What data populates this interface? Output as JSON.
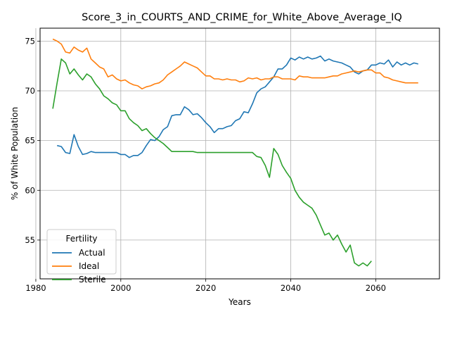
{
  "chart_data": {
    "type": "line",
    "title": "Score_3_in_COURTS_AND_CRIME_for_White_Above_Average_IQ",
    "xlabel": "Years",
    "ylabel": "% of White Population",
    "xlim": [
      1981,
      2075
    ],
    "ylim": [
      51.1,
      76.3
    ],
    "xticks": [
      1980,
      2000,
      2020,
      2040,
      2060
    ],
    "yticks": [
      55,
      60,
      65,
      70,
      75
    ],
    "grid": true,
    "legend": {
      "title": "Fertility",
      "location": "lower-left"
    },
    "series": [
      {
        "name": "Actual",
        "color": "#1f77b4",
        "x": [
          1985,
          1986,
          1987,
          1988,
          1989,
          1990,
          1991,
          1992,
          1993,
          1994,
          1995,
          1996,
          1997,
          1998,
          1999,
          2000,
          2001,
          2002,
          2003,
          2004,
          2005,
          2006,
          2007,
          2008,
          2009,
          2010,
          2011,
          2012,
          2013,
          2014,
          2015,
          2016,
          2017,
          2018,
          2019,
          2020,
          2021,
          2022,
          2023,
          2024,
          2025,
          2026,
          2027,
          2028,
          2029,
          2030,
          2031,
          2032,
          2033,
          2034,
          2035,
          2036,
          2037,
          2038,
          2039,
          2040,
          2041,
          2042,
          2043,
          2044,
          2045,
          2046,
          2047,
          2048,
          2049,
          2050,
          2051,
          2052,
          2053,
          2054,
          2055,
          2056,
          2057,
          2058,
          2059,
          2060,
          2061,
          2062,
          2063,
          2064,
          2065,
          2066,
          2067,
          2068,
          2069,
          2070
        ],
        "values": [
          64.5,
          64.4,
          63.8,
          63.7,
          65.6,
          64.4,
          63.6,
          63.7,
          63.9,
          63.8,
          63.8,
          63.8,
          63.8,
          63.8,
          63.8,
          63.6,
          63.6,
          63.3,
          63.5,
          63.5,
          63.8,
          64.5,
          65.1,
          65.0,
          65.4,
          66.1,
          66.4,
          67.5,
          67.6,
          67.6,
          68.4,
          68.1,
          67.6,
          67.7,
          67.3,
          66.8,
          66.4,
          65.8,
          66.2,
          66.2,
          66.4,
          66.5,
          67.0,
          67.2,
          67.9,
          67.8,
          68.7,
          69.8,
          70.2,
          70.4,
          70.9,
          71.4,
          72.2,
          72.2,
          72.6,
          73.3,
          73.1,
          73.4,
          73.2,
          73.4,
          73.2,
          73.3,
          73.5,
          73.0,
          73.2,
          73.0,
          72.9,
          72.8,
          72.6,
          72.4,
          71.9,
          71.7,
          72.0,
          72.1,
          72.6,
          72.6,
          72.8,
          72.7,
          73.1,
          72.4,
          72.9,
          72.6,
          72.8,
          72.6,
          72.8,
          72.7
        ]
      },
      {
        "name": "Ideal",
        "color": "#ff7f0e",
        "x": [
          1984,
          1985,
          1986,
          1987,
          1988,
          1989,
          1990,
          1991,
          1992,
          1993,
          1994,
          1995,
          1996,
          1997,
          1998,
          1999,
          2000,
          2001,
          2002,
          2003,
          2004,
          2005,
          2006,
          2007,
          2008,
          2009,
          2010,
          2011,
          2012,
          2013,
          2014,
          2015,
          2016,
          2017,
          2018,
          2019,
          2020,
          2021,
          2022,
          2023,
          2024,
          2025,
          2026,
          2027,
          2028,
          2029,
          2030,
          2031,
          2032,
          2033,
          2034,
          2035,
          2036,
          2037,
          2038,
          2039,
          2040,
          2041,
          2042,
          2043,
          2044,
          2045,
          2046,
          2047,
          2048,
          2049,
          2050,
          2051,
          2052,
          2053,
          2054,
          2055,
          2056,
          2057,
          2058,
          2059,
          2060,
          2061,
          2062,
          2063,
          2064,
          2065,
          2066,
          2067,
          2068,
          2069,
          2070
        ],
        "values": [
          75.2,
          75.0,
          74.7,
          73.9,
          73.8,
          74.4,
          74.1,
          73.9,
          74.3,
          73.2,
          72.8,
          72.4,
          72.2,
          71.4,
          71.6,
          71.2,
          71.0,
          71.1,
          70.8,
          70.6,
          70.5,
          70.2,
          70.4,
          70.5,
          70.7,
          70.8,
          71.1,
          71.6,
          71.9,
          72.2,
          72.5,
          72.9,
          72.7,
          72.5,
          72.3,
          71.9,
          71.5,
          71.5,
          71.2,
          71.2,
          71.1,
          71.2,
          71.1,
          71.1,
          70.9,
          71.0,
          71.3,
          71.2,
          71.3,
          71.1,
          71.2,
          71.2,
          71.4,
          71.4,
          71.2,
          71.2,
          71.2,
          71.1,
          71.5,
          71.4,
          71.4,
          71.3,
          71.3,
          71.3,
          71.3,
          71.4,
          71.5,
          71.5,
          71.7,
          71.8,
          71.9,
          72.0,
          71.9,
          72.0,
          72.1,
          72.1,
          71.8,
          71.8,
          71.4,
          71.3,
          71.1,
          71.0,
          70.9,
          70.8,
          70.8,
          70.8,
          70.8
        ]
      },
      {
        "name": "Sterile",
        "color": "#2ca02c",
        "x": [
          1984,
          1985,
          1986,
          1987,
          1988,
          1989,
          1990,
          1991,
          1992,
          1993,
          1994,
          1995,
          1996,
          1997,
          1998,
          1999,
          2000,
          2001,
          2002,
          2003,
          2004,
          2005,
          2006,
          2007,
          2008,
          2009,
          2010,
          2011,
          2012,
          2013,
          2014,
          2015,
          2016,
          2017,
          2018,
          2019,
          2020,
          2021,
          2022,
          2023,
          2024,
          2025,
          2026,
          2027,
          2028,
          2029,
          2030,
          2031,
          2032,
          2033,
          2034,
          2035,
          2036,
          2037,
          2038,
          2039,
          2040,
          2041,
          2042,
          2043,
          2044,
          2045,
          2046,
          2047,
          2048,
          2049,
          2050,
          2051,
          2052,
          2053,
          2054,
          2055,
          2056,
          2057,
          2058,
          2059
        ],
        "values": [
          68.2,
          70.8,
          73.2,
          72.8,
          71.7,
          72.2,
          71.6,
          71.1,
          71.7,
          71.4,
          70.7,
          70.2,
          69.5,
          69.2,
          68.8,
          68.6,
          68.0,
          68.0,
          67.2,
          66.8,
          66.5,
          66.0,
          66.2,
          65.7,
          65.3,
          65.0,
          64.7,
          64.3,
          63.9,
          63.9,
          63.9,
          63.9,
          63.9,
          63.9,
          63.8,
          63.8,
          63.8,
          63.8,
          63.8,
          63.8,
          63.8,
          63.8,
          63.8,
          63.8,
          63.8,
          63.8,
          63.8,
          63.8,
          63.4,
          63.3,
          62.5,
          61.3,
          64.2,
          63.6,
          62.5,
          61.8,
          61.2,
          60.0,
          59.3,
          58.8,
          58.5,
          58.2,
          57.5,
          56.5,
          55.5,
          55.7,
          55.0,
          55.5,
          54.6,
          53.8,
          54.5,
          52.7,
          52.4,
          52.7,
          52.4,
          52.9
        ]
      }
    ]
  }
}
